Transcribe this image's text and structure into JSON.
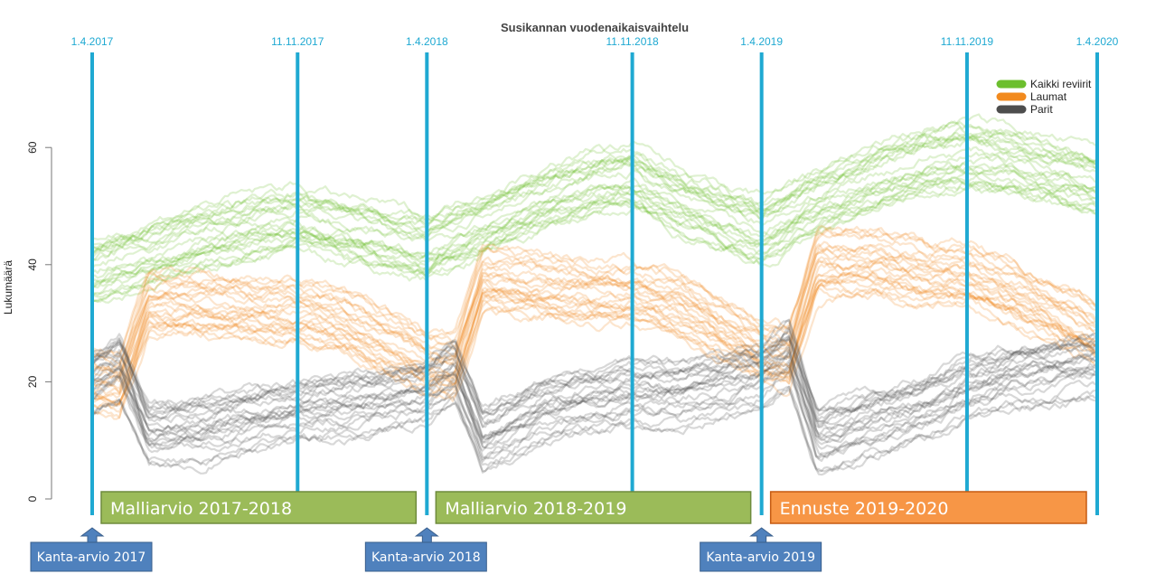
{
  "chart_data": {
    "type": "line",
    "title": "Susikannan vuodenaikaisvaihtelu",
    "ylabel": "Lukumäärä",
    "ylim": [
      0,
      65
    ],
    "yticks": [
      0,
      20,
      40,
      60
    ],
    "grid": false,
    "legend_position": "top-right",
    "dates": [
      "1.4.2017",
      "11.11.2017",
      "1.4.2018",
      "11.11.2018",
      "1.4.2019",
      "11.11.2019",
      "1.4.2020"
    ],
    "series": [
      {
        "name": "Kaikki reviirit",
        "color": "#6cbf2e",
        "x": [
          "1.4.2017",
          "1.6.2017",
          "1.8.2017",
          "1.10.2017",
          "11.11.2017",
          "1.1.2018",
          "1.4.2018",
          "1.6.2018",
          "1.8.2018",
          "1.10.2018",
          "11.11.2018",
          "1.1.2019",
          "1.4.2019",
          "1.6.2019",
          "1.8.2019",
          "1.10.2019",
          "11.11.2019",
          "1.1.2020",
          "1.4.2020"
        ],
        "values": [
          39,
          42,
          45,
          47,
          48,
          46,
          43,
          47,
          51,
          54,
          55,
          51,
          46,
          51,
          55,
          58,
          59,
          58,
          54
        ]
      },
      {
        "name": "Laumat",
        "color": "#f28a1e",
        "x": [
          "1.4.2017",
          "1.5.2017",
          "1.6.2017",
          "1.8.2017",
          "1.10.2017",
          "11.11.2017",
          "1.1.2018",
          "1.4.2018",
          "1.5.2018",
          "1.6.2018",
          "1.8.2018",
          "1.10.2018",
          "11.11.2018",
          "1.1.2019",
          "1.4.2019",
          "1.5.2019",
          "1.6.2019",
          "1.8.2019",
          "1.10.2019",
          "11.11.2019",
          "1.1.2020",
          "1.4.2020"
        ],
        "values": [
          20,
          19,
          33,
          33,
          32,
          32,
          30,
          23,
          22,
          37,
          36,
          35,
          35,
          33,
          25,
          24,
          40,
          40,
          38,
          38,
          35,
          28
        ]
      },
      {
        "name": "Parit",
        "color": "#4d4d4d",
        "x": [
          "1.4.2017",
          "1.5.2017",
          "1.6.2017",
          "1.8.2017",
          "1.10.2017",
          "11.11.2017",
          "1.1.2018",
          "1.4.2018",
          "1.5.2018",
          "1.6.2018",
          "1.8.2018",
          "1.10.2018",
          "11.11.2018",
          "1.1.2019",
          "1.4.2019",
          "1.5.2019",
          "1.6.2019",
          "1.8.2019",
          "1.10.2019",
          "11.11.2019",
          "1.1.2020",
          "1.4.2020"
        ],
        "values": [
          20,
          23,
          11,
          12,
          14,
          15,
          16,
          18,
          22,
          10,
          15,
          17,
          18,
          18,
          21,
          25,
          10,
          13,
          16,
          19,
          21,
          23
        ]
      }
    ],
    "annotations": {
      "periods": [
        {
          "label": "Malliarvio 2017-2018",
          "start": "1.4.2017",
          "end": "1.4.2018",
          "color": "#9bbb59"
        },
        {
          "label": "Malliarvio 2018-2019",
          "start": "1.4.2018",
          "end": "1.4.2019",
          "color": "#9bbb59"
        },
        {
          "label": "Ennuste 2019-2020",
          "start": "1.4.2019",
          "end": "1.4.2020",
          "color": "#f79646"
        }
      ],
      "anchors": [
        {
          "label": "Kanta-arvio 2017",
          "at": "1.4.2017"
        },
        {
          "label": "Kanta-arvio 2018",
          "at": "1.4.2018"
        },
        {
          "label": "Kanta-arvio 2019",
          "at": "1.4.2019"
        }
      ],
      "anchor_color": "#4f81bd",
      "date_line_color": "#1fa9d2"
    }
  }
}
